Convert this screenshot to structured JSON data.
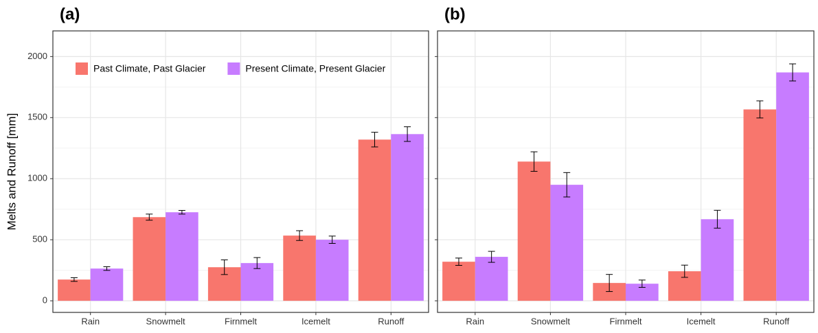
{
  "chart_data": [
    {
      "type": "bar",
      "title": "(a)",
      "y_label": "Melts and Runoff [mm]",
      "categories": [
        "Rain",
        "Snowmelt",
        "Firnmelt",
        "Icemelt",
        "Runoff"
      ],
      "series": [
        {
          "name": "Past Climate, Past Glacier",
          "color": "#F8766D",
          "values": [
            174,
            685,
            275,
            534,
            1320
          ],
          "errors": [
            15,
            25,
            60,
            40,
            60
          ]
        },
        {
          "name": "Present Climate, Present Glacier",
          "color": "#C77CFF",
          "values": [
            264,
            725,
            309,
            500,
            1365
          ],
          "errors": [
            15,
            15,
            45,
            30,
            60
          ]
        }
      ],
      "ylim": [
        -95,
        2210
      ],
      "yticks": [
        0,
        500,
        1000,
        1500,
        2000
      ],
      "grid": true,
      "legend": "top"
    },
    {
      "type": "bar",
      "title": "(b)",
      "categories": [
        "Rain",
        "Snowmelt",
        "Firnmelt",
        "Icemelt",
        "Runoff"
      ],
      "series": [
        {
          "color": "#F8766D",
          "values": [
            320,
            1140,
            146,
            242,
            1567
          ],
          "errors": [
            30,
            80,
            70,
            50,
            70
          ]
        },
        {
          "color": "#C77CFF",
          "values": [
            360,
            950,
            140,
            668,
            1870
          ],
          "errors": [
            45,
            100,
            30,
            73,
            70
          ]
        }
      ],
      "ylim": [
        -95,
        2210
      ],
      "yticks": [
        0,
        500,
        1000,
        1500,
        2000
      ],
      "grid": true
    }
  ]
}
